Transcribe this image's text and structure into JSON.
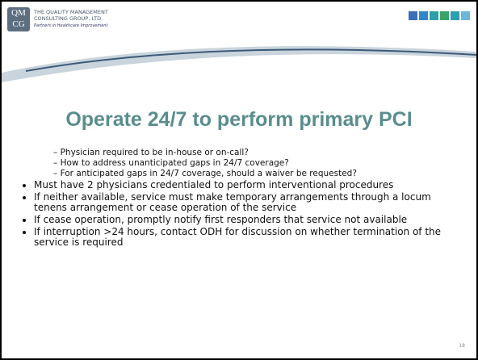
{
  "header": {
    "logo": [
      "QM",
      "CG"
    ],
    "company": [
      "THE QUALITY MANAGEMENT",
      "CONSULTING GROUP, LTD."
    ],
    "tagline": "Partners in Healthcare Improvement"
  },
  "slide": {
    "title": "Operate 24/7 to perform primary PCI",
    "sub_bullets": [
      "Physician required to be in-house or on-call?",
      "How to address unanticipated gaps in 24/7 coverage?",
      "For anticipated gaps in 24/7 coverage, should a waiver be requested?"
    ],
    "bullets": [
      "Must have 2 physicians credentialed to perform interventional procedures",
      "If neither available, service must make temporary arrangements through a locum tenens arrangement or cease operation of the service",
      "If cease operation, promptly notify first responders that service not available",
      "If interruption >24 hours, contact ODH for discussion on whether termination of the service is required"
    ],
    "page_number": "18"
  }
}
